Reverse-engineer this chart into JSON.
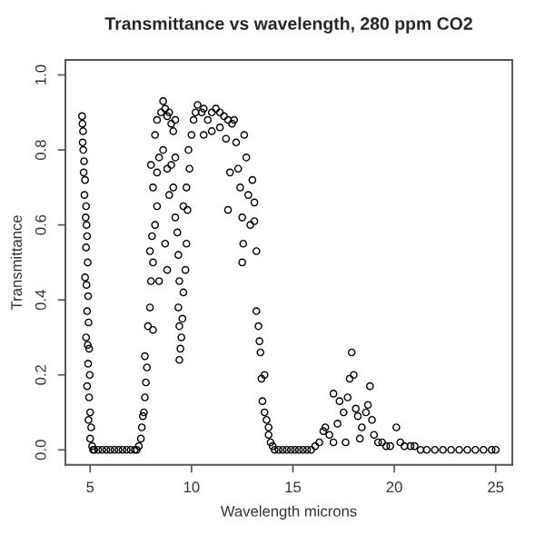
{
  "chart_data": {
    "type": "scatter",
    "title": "Transmittance vs wavelength, 280 ppm CO2",
    "xlabel": "Wavelength microns",
    "ylabel": "Transmittance",
    "xlim": [
      3.78,
      25.82
    ],
    "ylim": [
      -0.04,
      1.04
    ],
    "xticks": [
      5,
      10,
      15,
      20,
      25
    ],
    "yticks": [
      {
        "value": 0,
        "label": "0.0"
      },
      {
        "value": 0.2,
        "label": "0.2"
      },
      {
        "value": 0.4,
        "label": "0.4"
      },
      {
        "value": 0.6,
        "label": "0.6"
      },
      {
        "value": 0.8,
        "label": "0.8"
      },
      {
        "value": 1,
        "label": "1.0"
      }
    ],
    "grid": false,
    "marker": "circle",
    "series": [
      {
        "color": "#000000",
        "x": [
          4.6,
          4.62,
          4.65,
          4.63,
          4.66,
          4.7,
          4.68,
          4.75,
          4.72,
          4.8,
          4.78,
          4.82,
          4.85,
          4.8,
          4.88,
          4.75,
          4.82,
          4.9,
          4.85,
          4.92,
          4.8,
          4.88,
          4.95,
          4.9,
          4.98,
          4.85,
          4.95,
          5.0,
          4.92,
          5.05,
          5.0,
          5.1,
          5.15,
          5.2,
          5.4,
          5.6,
          5.8,
          6.0,
          6.2,
          6.4,
          6.6,
          6.8,
          7.0,
          7.2,
          7.3,
          7.4,
          7.5,
          7.55,
          7.6,
          7.65,
          7.7,
          7.75,
          7.8,
          7.7,
          7.85,
          7.95,
          8.0,
          8.1,
          7.95,
          8.05,
          8.2,
          8.3,
          8.1,
          8.3,
          8.0,
          8.4,
          8.2,
          8.3,
          8.5,
          8.6,
          8.7,
          8.8,
          8.9,
          9.0,
          9.1,
          9.2,
          8.6,
          8.8,
          9.0,
          9.1,
          8.9,
          8.7,
          8.4,
          8.8,
          8.1,
          9.2,
          9.2,
          9.3,
          9.35,
          9.4,
          9.35,
          9.4,
          9.45,
          9.4,
          9.5,
          9.55,
          9.6,
          9.7,
          9.75,
          9.6,
          9.8,
          9.75,
          9.9,
          9.85,
          10.0,
          10.1,
          10.2,
          10.3,
          10.5,
          10.6,
          10.8,
          11.0,
          11.2,
          11.4,
          11.6,
          11.8,
          12.0,
          12.1,
          10.6,
          11.0,
          11.4,
          11.7,
          11.9,
          11.8,
          12.2,
          12.3,
          12.4,
          12.5,
          12.5,
          12.55,
          12.6,
          12.7,
          12.8,
          12.9,
          13.0,
          13.1,
          13.1,
          13.2,
          13.2,
          13.3,
          13.35,
          13.4,
          13.45,
          13.6,
          13.5,
          13.6,
          13.7,
          13.8,
          13.8,
          13.9,
          14.0,
          14.1,
          14.3,
          14.5,
          14.7,
          14.9,
          15.1,
          15.3,
          15.5,
          15.7,
          15.9,
          16.1,
          16.3,
          16.5,
          16.6,
          16.8,
          17.0,
          17.0,
          17.2,
          17.3,
          17.5,
          17.6,
          17.7,
          17.8,
          17.9,
          18.0,
          18.1,
          18.2,
          18.3,
          18.4,
          18.6,
          18.7,
          18.8,
          18.9,
          19.0,
          19.2,
          19.4,
          19.6,
          19.8,
          20.1,
          20.3,
          20.5,
          20.8,
          21.0,
          21.3,
          21.6,
          22.0,
          22.4,
          22.8,
          23.2,
          23.6,
          24.0,
          24.4,
          24.8,
          25.0
        ],
        "values": [
          0.89,
          0.87,
          0.85,
          0.82,
          0.8,
          0.77,
          0.74,
          0.72,
          0.68,
          0.65,
          0.62,
          0.6,
          0.57,
          0.54,
          0.5,
          0.46,
          0.44,
          0.41,
          0.37,
          0.34,
          0.3,
          0.28,
          0.27,
          0.23,
          0.2,
          0.17,
          0.14,
          0.1,
          0.08,
          0.06,
          0.03,
          0.01,
          0.0,
          0.0,
          0.0,
          0.0,
          0.0,
          0.0,
          0.0,
          0.0,
          0.0,
          0.0,
          0.0,
          0.0,
          0.0,
          0.01,
          0.03,
          0.06,
          0.09,
          0.1,
          0.14,
          0.18,
          0.22,
          0.25,
          0.33,
          0.38,
          0.45,
          0.5,
          0.53,
          0.57,
          0.6,
          0.65,
          0.7,
          0.74,
          0.76,
          0.78,
          0.84,
          0.88,
          0.9,
          0.93,
          0.91,
          0.89,
          0.9,
          0.87,
          0.85,
          0.88,
          0.8,
          0.75,
          0.76,
          0.7,
          0.68,
          0.55,
          0.45,
          0.48,
          0.32,
          0.78,
          0.62,
          0.58,
          0.52,
          0.45,
          0.38,
          0.33,
          0.27,
          0.24,
          0.3,
          0.35,
          0.42,
          0.48,
          0.55,
          0.65,
          0.64,
          0.7,
          0.75,
          0.8,
          0.84,
          0.88,
          0.9,
          0.92,
          0.9,
          0.91,
          0.88,
          0.9,
          0.91,
          0.9,
          0.89,
          0.88,
          0.87,
          0.88,
          0.84,
          0.85,
          0.86,
          0.83,
          0.74,
          0.64,
          0.82,
          0.75,
          0.7,
          0.62,
          0.5,
          0.55,
          0.84,
          0.78,
          0.68,
          0.6,
          0.72,
          0.66,
          0.61,
          0.53,
          0.37,
          0.33,
          0.29,
          0.26,
          0.19,
          0.2,
          0.13,
          0.1,
          0.08,
          0.06,
          0.04,
          0.02,
          0.01,
          0.0,
          0.0,
          0.0,
          0.0,
          0.0,
          0.0,
          0.0,
          0.0,
          0.0,
          0.0,
          0.01,
          0.02,
          0.05,
          0.06,
          0.04,
          0.02,
          0.15,
          0.07,
          0.13,
          0.1,
          0.02,
          0.14,
          0.19,
          0.26,
          0.2,
          0.11,
          0.09,
          0.03,
          0.06,
          0.1,
          0.12,
          0.17,
          0.08,
          0.04,
          0.02,
          0.02,
          0.01,
          0.01,
          0.06,
          0.02,
          0.01,
          0.01,
          0.01,
          0.0,
          0.0,
          0.0,
          0.0,
          0.0,
          0.0,
          0.0,
          0.0,
          0.0,
          0.0,
          0.0
        ]
      }
    ]
  }
}
